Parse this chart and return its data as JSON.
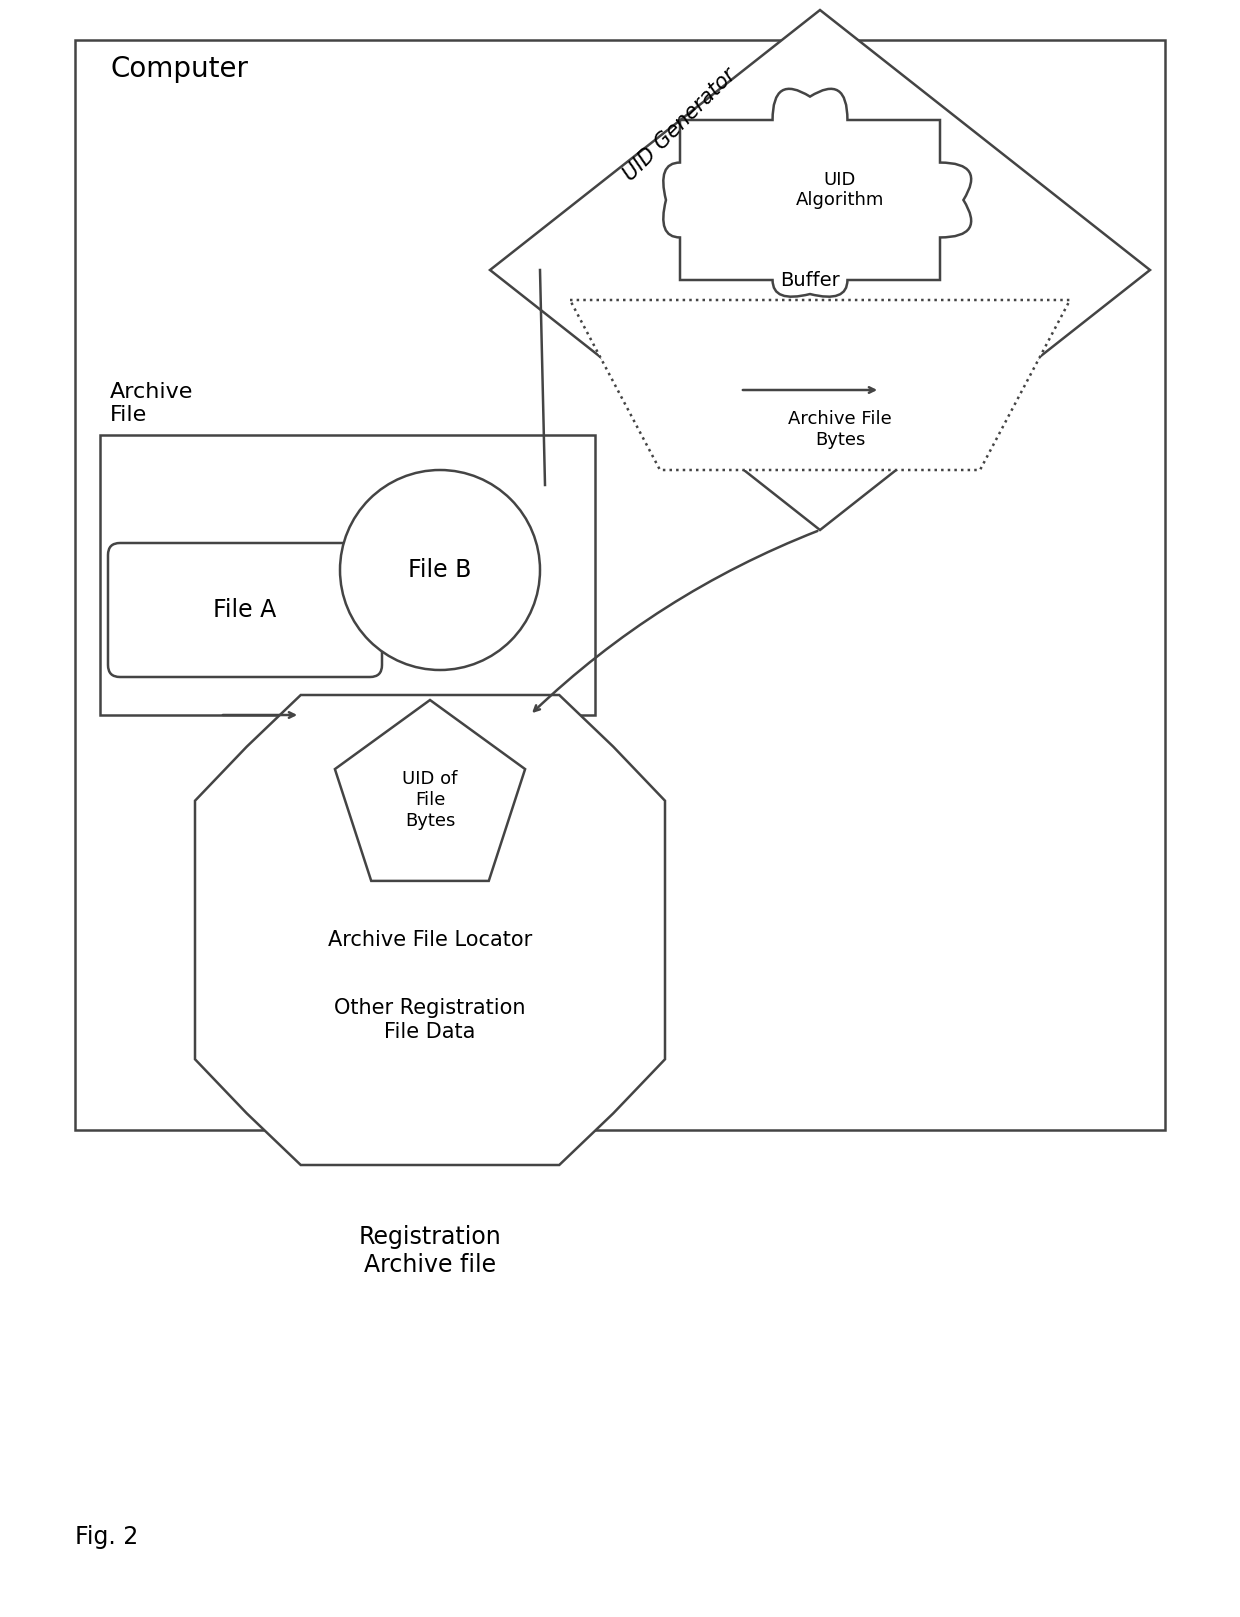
{
  "bg_color": "#ffffff",
  "line_color": "#444444",
  "fig_caption": "Fig. 2",
  "computer_label": "Computer",
  "archive_file_label": "Archive\nFile",
  "file_a_label": "File A",
  "file_b_label": "File B",
  "uid_generator_label": "UID Generator",
  "uid_algorithm_label": "UID\nAlgorithm",
  "buffer_label": "Buffer",
  "archive_file_bytes_label": "Archive File\nBytes",
  "uid_of_file_bytes_label": "UID of\nFile\nBytes",
  "archive_file_locator_label": "Archive File Locator",
  "other_reg_label": "Other Registration\nFile Data",
  "reg_archive_label": "Registration\nArchive file"
}
